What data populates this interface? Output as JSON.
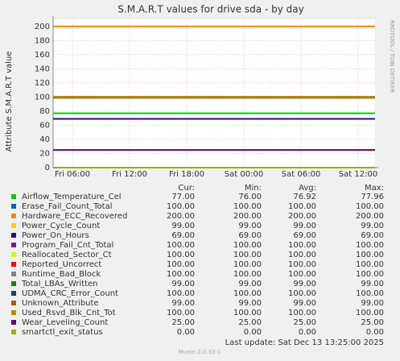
{
  "chart_data": {
    "type": "line",
    "title": "S.M.A.R.T values for drive sda - by day",
    "y_label": "Attribute S.M.A.R.T value",
    "side_label": "RRDTOOL / TOBI OETIKER",
    "x_tick_labels": [
      "Fri 06:00",
      "Fri 12:00",
      "Fri 18:00",
      "Sat 00:00",
      "Sat 06:00",
      "Sat 12:00"
    ],
    "ylim": [
      0,
      210
    ],
    "yticks": [
      0,
      20,
      40,
      60,
      80,
      100,
      120,
      140,
      160,
      180,
      200
    ],
    "grid": true,
    "columns": [
      "Cur:",
      "Min:",
      "Avg:",
      "Max:"
    ],
    "series": [
      {
        "name": "Airflow_Temperature_Cel",
        "color": "#00cc00",
        "values": [
          77,
          76,
          76.92,
          77.96
        ],
        "value_labels": [
          "77.00",
          "76.00",
          "76.92",
          "77.96"
        ]
      },
      {
        "name": "Erase_Fail_Count_Total",
        "color": "#0066b3",
        "values": [
          100,
          100,
          100,
          100
        ],
        "value_labels": [
          "100.00",
          "100.00",
          "100.00",
          "100.00"
        ]
      },
      {
        "name": "Hardware_ECC_Recovered",
        "color": "#ff8000",
        "values": [
          200,
          200,
          200,
          200
        ],
        "value_labels": [
          "200.00",
          "200.00",
          "200.00",
          "200.00"
        ]
      },
      {
        "name": "Power_Cycle_Count",
        "color": "#ffcc00",
        "values": [
          99,
          99,
          99,
          99
        ],
        "value_labels": [
          "99.00",
          "99.00",
          "99.00",
          "99.00"
        ]
      },
      {
        "name": "Power_On_Hours",
        "color": "#330099",
        "values": [
          69,
          69,
          69,
          69
        ],
        "value_labels": [
          "69.00",
          "69.00",
          "69.00",
          "69.00"
        ]
      },
      {
        "name": "Program_Fail_Cnt_Total",
        "color": "#990099",
        "values": [
          100,
          100,
          100,
          100
        ],
        "value_labels": [
          "100.00",
          "100.00",
          "100.00",
          "100.00"
        ]
      },
      {
        "name": "Reallocated_Sector_Ct",
        "color": "#ccff00",
        "values": [
          100,
          100,
          100,
          100
        ],
        "value_labels": [
          "100.00",
          "100.00",
          "100.00",
          "100.00"
        ]
      },
      {
        "name": "Reported_Uncorrect",
        "color": "#ff0000",
        "values": [
          100,
          100,
          100,
          100
        ],
        "value_labels": [
          "100.00",
          "100.00",
          "100.00",
          "100.00"
        ]
      },
      {
        "name": "Runtime_Bad_Block",
        "color": "#808080",
        "values": [
          100,
          100,
          100,
          100
        ],
        "value_labels": [
          "100.00",
          "100.00",
          "100.00",
          "100.00"
        ]
      },
      {
        "name": "Total_LBAs_Written",
        "color": "#008f00",
        "values": [
          99,
          99,
          99,
          99
        ],
        "value_labels": [
          "99.00",
          "99.00",
          "99.00",
          "99.00"
        ]
      },
      {
        "name": "UDMA_CRC_Error_Count",
        "color": "#00487d",
        "values": [
          100,
          100,
          100,
          100
        ],
        "value_labels": [
          "100.00",
          "100.00",
          "100.00",
          "100.00"
        ]
      },
      {
        "name": "Unknown_Attribute",
        "color": "#b35a00",
        "values": [
          99,
          99,
          99,
          99
        ],
        "value_labels": [
          "99.00",
          "99.00",
          "99.00",
          "99.00"
        ]
      },
      {
        "name": "Used_Rsvd_Blk_Cnt_Tot",
        "color": "#b38f00",
        "values": [
          100,
          100,
          100,
          100
        ],
        "value_labels": [
          "100.00",
          "100.00",
          "100.00",
          "100.00"
        ]
      },
      {
        "name": "Wear_Leveling_Count",
        "color": "#6b006b",
        "values": [
          25,
          25,
          25,
          25
        ],
        "value_labels": [
          "25.00",
          "25.00",
          "25.00",
          "25.00"
        ]
      },
      {
        "name": "smartctl_exit_status",
        "color": "#8fb300",
        "values": [
          0,
          0,
          0,
          0
        ],
        "value_labels": [
          "0.00",
          "0.00",
          "0.00",
          "0.00"
        ]
      }
    ],
    "last_update": "Last update:  Sat Dec 13 13:25:00 2025",
    "footer": "Munin 2.0.33-1"
  }
}
